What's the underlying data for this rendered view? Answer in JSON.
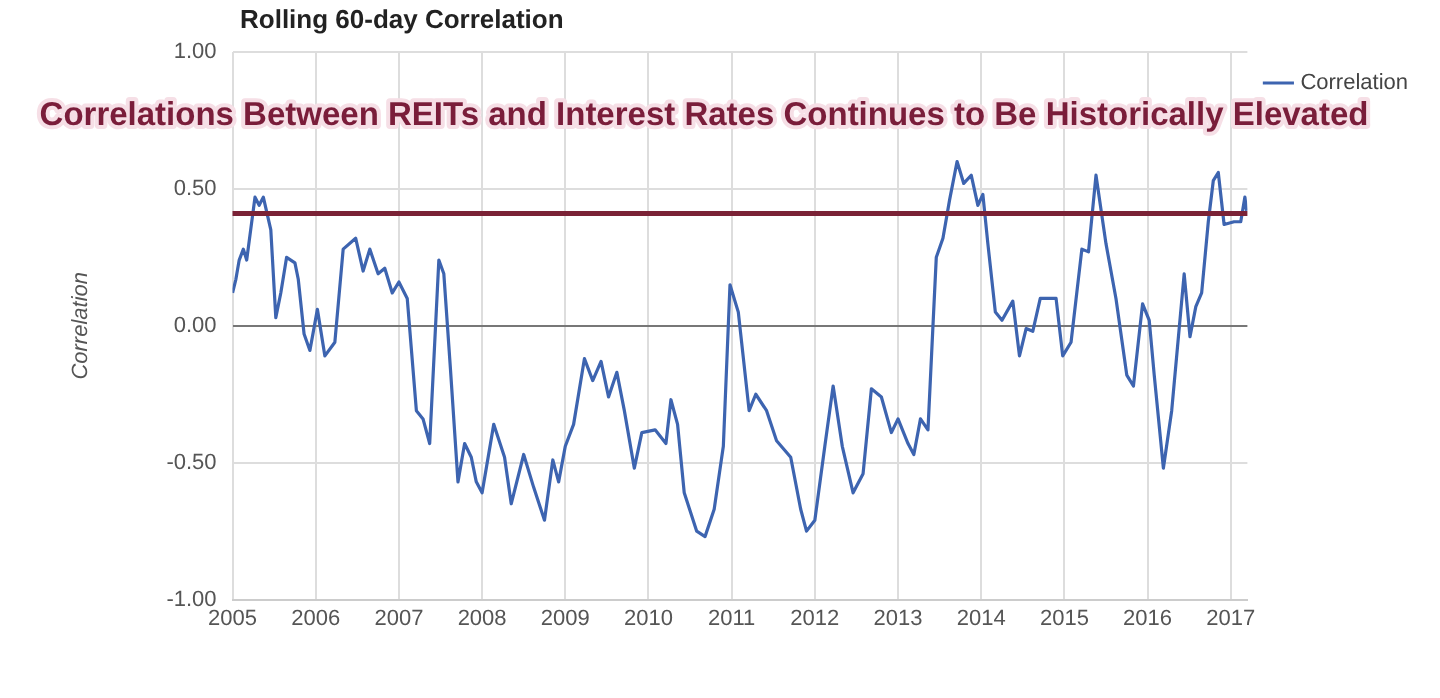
{
  "chart_data": {
    "type": "line",
    "title": "Rolling 60-day Correlation",
    "ylabel": "Correlation",
    "annotations": [
      "Correlations Between REITs and Interest Rates Continues to Be Historically Elevated"
    ],
    "x": [
      2005.0,
      2005.04,
      2005.08,
      2005.13,
      2005.17,
      2005.27,
      2005.32,
      2005.37,
      2005.46,
      2005.52,
      2005.58,
      2005.65,
      2005.75,
      2005.79,
      2005.86,
      2005.93,
      2006.02,
      2006.11,
      2006.23,
      2006.33,
      2006.48,
      2006.57,
      2006.65,
      2006.75,
      2006.83,
      2006.92,
      2007.0,
      2007.1,
      2007.21,
      2007.29,
      2007.37,
      2007.48,
      2007.54,
      2007.62,
      2007.71,
      2007.79,
      2007.87,
      2007.93,
      2008.0,
      2008.14,
      2008.27,
      2008.35,
      2008.5,
      2008.62,
      2008.75,
      2008.85,
      2008.92,
      2009.0,
      2009.1,
      2009.23,
      2009.33,
      2009.43,
      2009.52,
      2009.62,
      2009.71,
      2009.83,
      2009.92,
      2010.08,
      2010.21,
      2010.27,
      2010.35,
      2010.43,
      2010.58,
      2010.68,
      2010.79,
      2010.9,
      2010.98,
      2011.08,
      2011.21,
      2011.29,
      2011.42,
      2011.54,
      2011.71,
      2011.83,
      2011.9,
      2012.0,
      2012.12,
      2012.22,
      2012.33,
      2012.46,
      2012.58,
      2012.68,
      2012.8,
      2012.92,
      2013.0,
      2013.12,
      2013.19,
      2013.27,
      2013.36,
      2013.42,
      2013.46,
      2013.54,
      2013.62,
      2013.71,
      2013.79,
      2013.88,
      2013.96,
      2014.02,
      2014.08,
      2014.17,
      2014.25,
      2014.38,
      2014.46,
      2014.54,
      2014.62,
      2014.71,
      2014.83,
      2014.9,
      2014.98,
      2015.08,
      2015.21,
      2015.29,
      2015.38,
      2015.5,
      2015.62,
      2015.75,
      2015.83,
      2015.94,
      2016.02,
      2016.08,
      2016.19,
      2016.29,
      2016.44,
      2016.51,
      2016.58,
      2016.65,
      2016.73,
      2016.79,
      2016.85,
      2016.92,
      2017.04,
      2017.12,
      2017.17,
      2017.19
    ],
    "series": [
      {
        "name": "Correlation",
        "color": "#3d64b0",
        "values": [
          0.12,
          0.17,
          0.24,
          0.28,
          0.24,
          0.47,
          0.44,
          0.47,
          0.35,
          0.03,
          0.12,
          0.25,
          0.23,
          0.17,
          -0.03,
          -0.09,
          0.06,
          -0.11,
          -0.06,
          0.28,
          0.32,
          0.2,
          0.28,
          0.19,
          0.21,
          0.12,
          0.16,
          0.1,
          -0.31,
          -0.34,
          -0.43,
          0.24,
          0.19,
          -0.16,
          -0.57,
          -0.43,
          -0.48,
          -0.57,
          -0.61,
          -0.36,
          -0.48,
          -0.65,
          -0.47,
          -0.59,
          -0.71,
          -0.49,
          -0.57,
          -0.44,
          -0.36,
          -0.12,
          -0.2,
          -0.13,
          -0.26,
          -0.17,
          -0.31,
          -0.52,
          -0.39,
          -0.38,
          -0.43,
          -0.27,
          -0.36,
          -0.61,
          -0.75,
          -0.77,
          -0.67,
          -0.44,
          0.15,
          0.05,
          -0.31,
          -0.25,
          -0.31,
          -0.42,
          -0.48,
          -0.67,
          -0.75,
          -0.71,
          -0.44,
          -0.22,
          -0.44,
          -0.61,
          -0.54,
          -0.23,
          -0.26,
          -0.39,
          -0.34,
          -0.43,
          -0.47,
          -0.34,
          -0.38,
          0.0,
          0.25,
          0.32,
          0.46,
          0.6,
          0.52,
          0.55,
          0.44,
          0.48,
          0.3,
          0.05,
          0.02,
          0.09,
          -0.11,
          -0.01,
          -0.02,
          0.1,
          0.1,
          0.1,
          -0.11,
          -0.06,
          0.28,
          0.27,
          0.55,
          0.3,
          0.1,
          -0.18,
          -0.22,
          0.08,
          0.02,
          -0.18,
          -0.52,
          -0.31,
          0.19,
          -0.04,
          0.07,
          0.12,
          0.38,
          0.53,
          0.56,
          0.37,
          0.38,
          0.38,
          0.47,
          0.42
        ]
      }
    ],
    "xlim": [
      2005,
      2017.2
    ],
    "xticks": [
      2005,
      2006,
      2007,
      2008,
      2009,
      2010,
      2011,
      2012,
      2013,
      2014,
      2015,
      2016,
      2017
    ],
    "ylim": [
      -1,
      1
    ],
    "yticks": [
      {
        "value": -1,
        "label": "-1.00"
      },
      {
        "value": -0.5,
        "label": "-0.50"
      },
      {
        "value": 0,
        "label": "0.00"
      },
      {
        "value": 0.5,
        "label": "0.50"
      },
      {
        "value": 1,
        "label": "1.00"
      }
    ],
    "ref_lines": [
      {
        "axis": "y",
        "value": 0.41,
        "color": "#7a2236"
      }
    ],
    "grid": true,
    "legend": "top right",
    "marker": "none",
    "line_style": "solid"
  }
}
